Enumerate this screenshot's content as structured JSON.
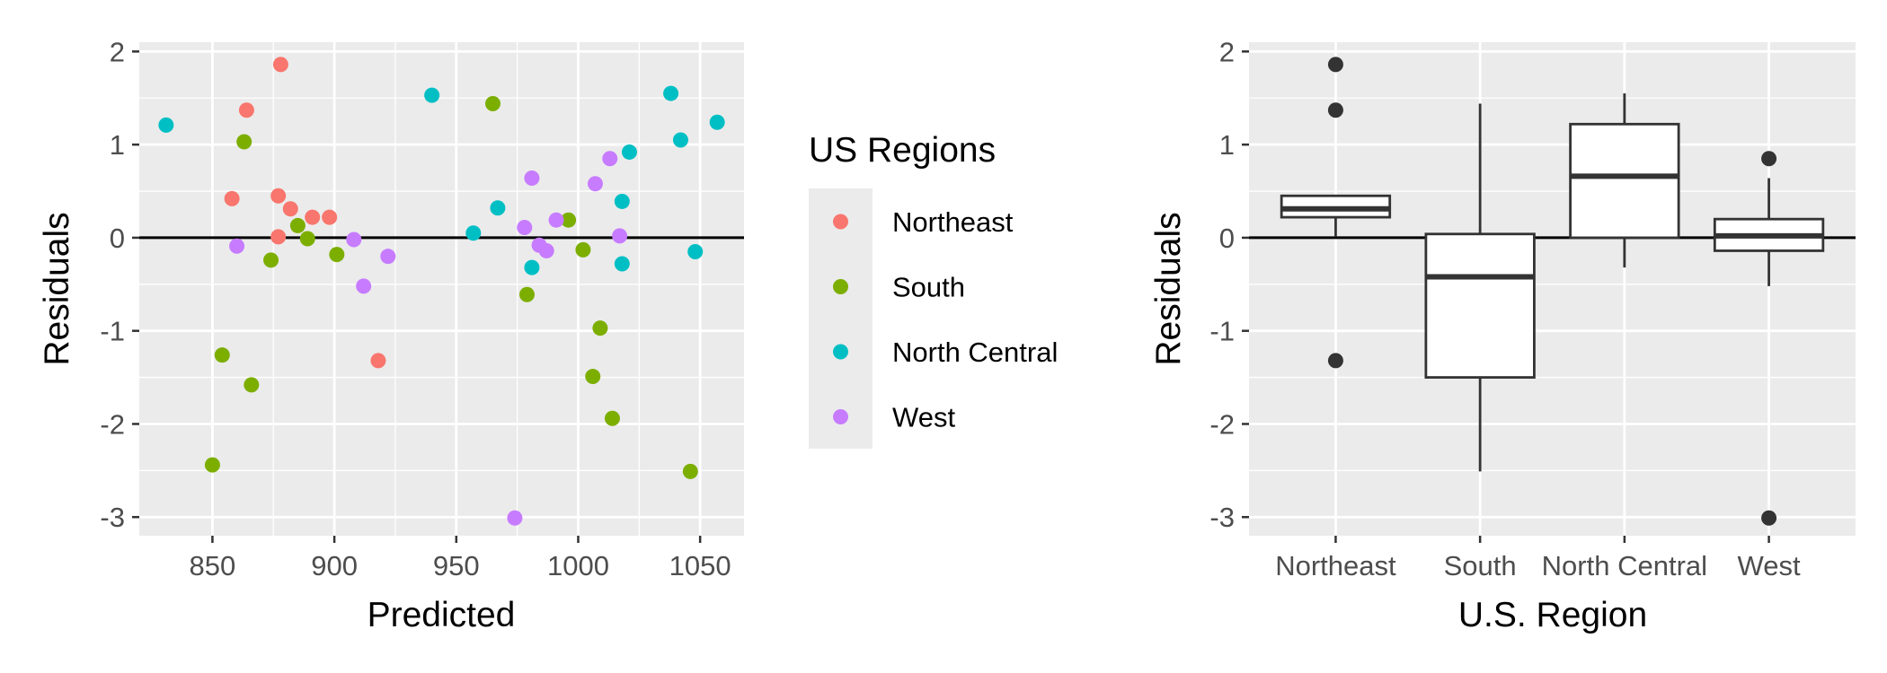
{
  "chart_data": [
    {
      "type": "scatter",
      "xlabel": "Predicted",
      "ylabel": "Residuals",
      "xlim": [
        820,
        1068
      ],
      "ylim": [
        -3.2,
        2.1
      ],
      "xticks": [
        850,
        900,
        950,
        1000,
        1050
      ],
      "yticks": [
        -3,
        -2,
        -1,
        0,
        1,
        2
      ],
      "hline": 0,
      "grid": true,
      "legend": {
        "title": "US Regions",
        "placement": "right",
        "entries": [
          "Northeast",
          "South",
          "North Central",
          "West"
        ]
      },
      "series": [
        {
          "name": "Northeast",
          "color": "#F8766D",
          "points": [
            [
              878,
              1.86
            ],
            [
              864,
              1.37
            ],
            [
              858,
              0.42
            ],
            [
              877,
              0.45
            ],
            [
              882,
              0.31
            ],
            [
              891,
              0.22
            ],
            [
              898,
              0.22
            ],
            [
              877,
              0.01
            ],
            [
              918,
              -1.32
            ]
          ]
        },
        {
          "name": "South",
          "color": "#7CAE00",
          "points": [
            [
              965,
              1.44
            ],
            [
              863,
              1.03
            ],
            [
              885,
              0.13
            ],
            [
              889,
              -0.01
            ],
            [
              874,
              -0.24
            ],
            [
              901,
              -0.18
            ],
            [
              996,
              0.19
            ],
            [
              1002,
              -0.13
            ],
            [
              979,
              -0.61
            ],
            [
              1009,
              -0.97
            ],
            [
              854,
              -1.26
            ],
            [
              866,
              -1.58
            ],
            [
              1006,
              -1.49
            ],
            [
              1014,
              -1.94
            ],
            [
              850,
              -2.44
            ],
            [
              1046,
              -2.51
            ]
          ]
        },
        {
          "name": "North Central",
          "color": "#00BFC4",
          "points": [
            [
              831,
              1.21
            ],
            [
              940,
              1.53
            ],
            [
              1038,
              1.55
            ],
            [
              1057,
              1.24
            ],
            [
              1042,
              1.05
            ],
            [
              1021,
              0.92
            ],
            [
              1018,
              0.39
            ],
            [
              967,
              0.32
            ],
            [
              957,
              0.05
            ],
            [
              981,
              -0.32
            ],
            [
              1018,
              -0.28
            ],
            [
              1048,
              -0.15
            ]
          ]
        },
        {
          "name": "West",
          "color": "#C77CFF",
          "points": [
            [
              981,
              0.64
            ],
            [
              1013,
              0.85
            ],
            [
              1007,
              0.58
            ],
            [
              991,
              0.19
            ],
            [
              978,
              0.11
            ],
            [
              1017,
              0.02
            ],
            [
              908,
              -0.02
            ],
            [
              984,
              -0.08
            ],
            [
              987,
              -0.14
            ],
            [
              860,
              -0.09
            ],
            [
              922,
              -0.2
            ],
            [
              912,
              -0.52
            ],
            [
              974,
              -3.01
            ]
          ]
        }
      ]
    },
    {
      "type": "boxplot",
      "xlabel": "U.S. Region",
      "ylabel": "Residuals",
      "categories": [
        "Northeast",
        "South",
        "North Central",
        "West"
      ],
      "ylim": [
        -3.2,
        2.1
      ],
      "yticks": [
        -3,
        -2,
        -1,
        0,
        1,
        2
      ],
      "hline": 0,
      "grid": true,
      "boxes": [
        {
          "category": "Northeast",
          "whisker_low": 0.01,
          "q1": 0.22,
          "median": 0.31,
          "q3": 0.45,
          "whisker_high": 0.45,
          "outliers": [
            1.86,
            1.37,
            -1.32
          ]
        },
        {
          "category": "South",
          "whisker_low": -2.51,
          "q1": -1.5,
          "median": -0.42,
          "q3": 0.04,
          "whisker_high": 1.44,
          "outliers": []
        },
        {
          "category": "North Central",
          "whisker_low": -0.32,
          "q1": 0.0,
          "median": 0.66,
          "q3": 1.22,
          "whisker_high": 1.55,
          "outliers": []
        },
        {
          "category": "West",
          "whisker_low": -0.52,
          "q1": -0.14,
          "median": 0.02,
          "q3": 0.2,
          "whisker_high": 0.64,
          "outliers": [
            0.85,
            -3.01
          ]
        }
      ]
    }
  ]
}
